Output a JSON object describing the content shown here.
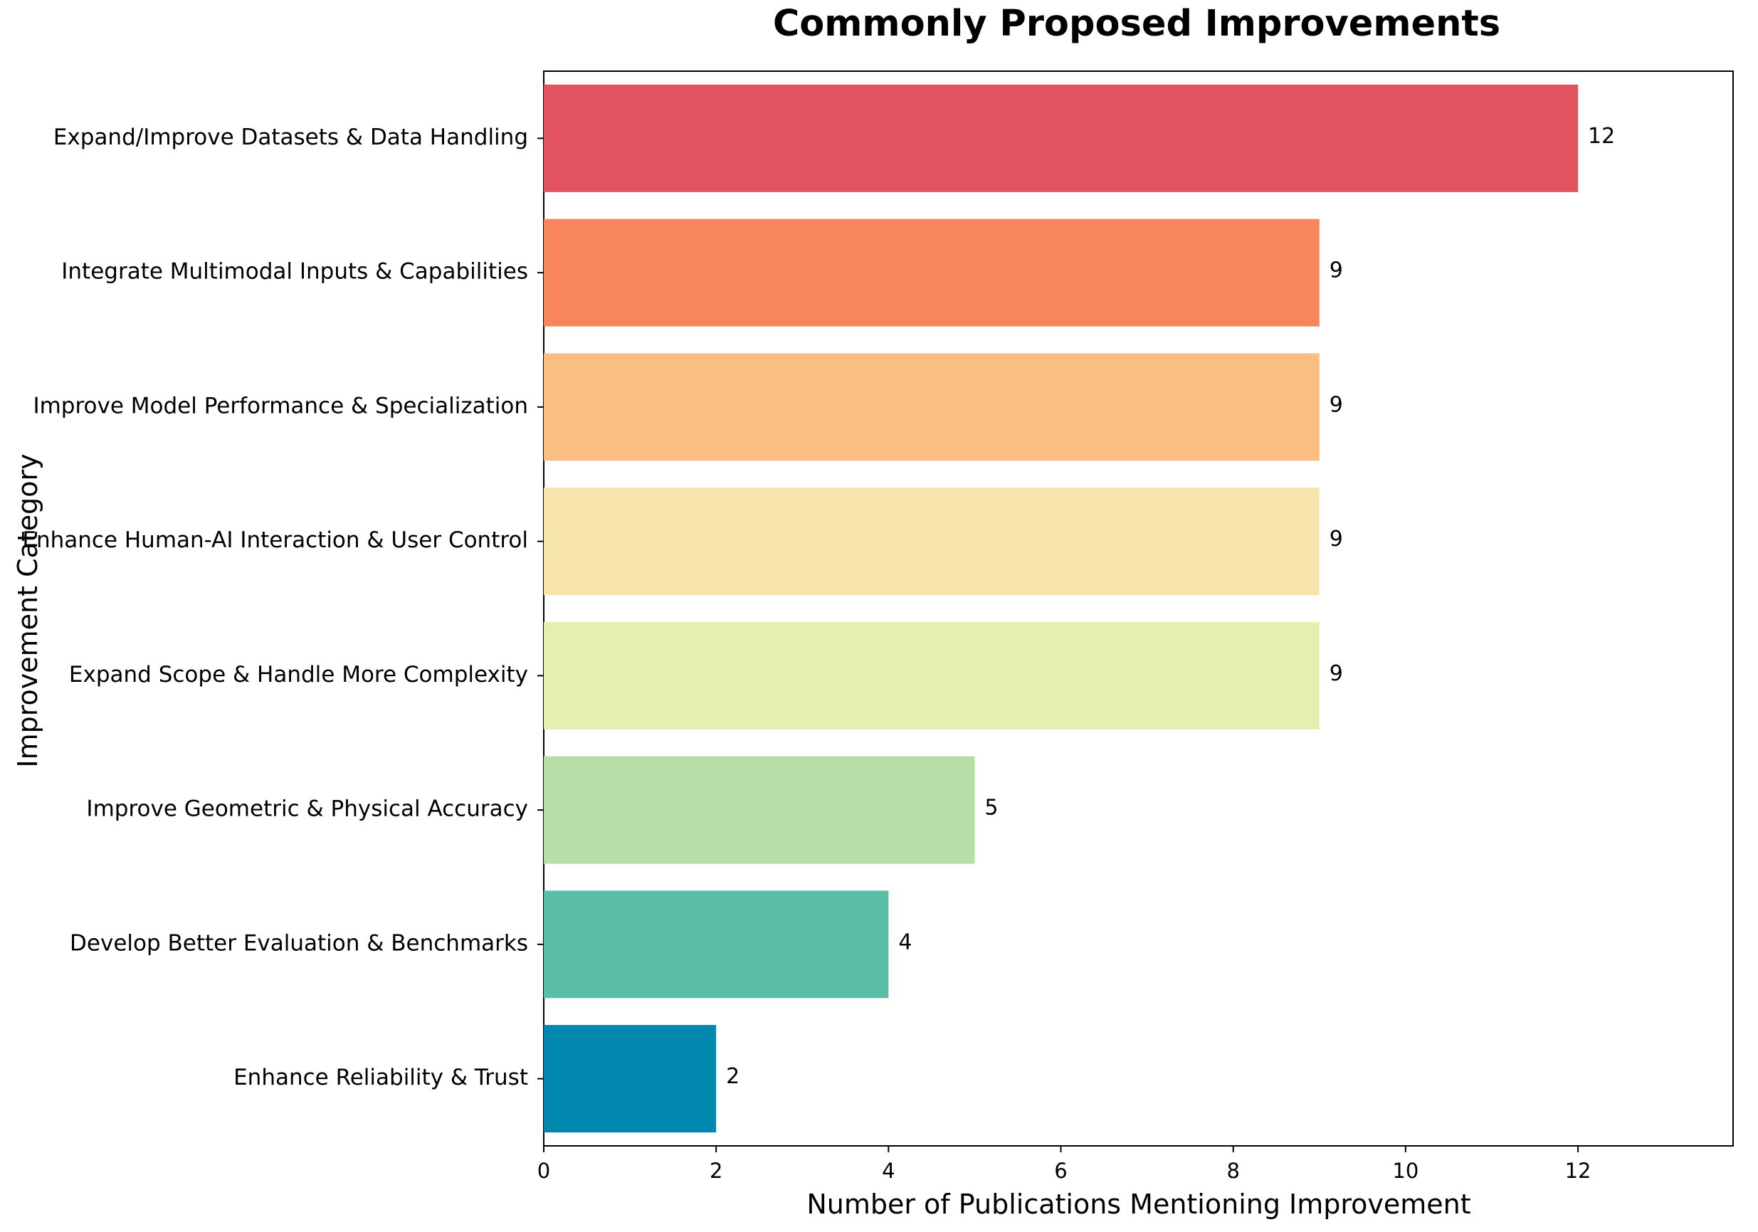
{
  "chart_data": {
    "type": "bar",
    "orientation": "horizontal",
    "title": "Commonly Proposed Improvements",
    "xlabel": "Number of Publications Mentioning Improvement",
    "ylabel": "Improvement Category",
    "xlim": [
      0,
      13.8
    ],
    "xticks": [
      0,
      2,
      4,
      6,
      8,
      10,
      12
    ],
    "grid": false,
    "categories": [
      "Expand/Improve Datasets & Data Handling",
      "Integrate Multimodal Inputs & Capabilities",
      "Improve Model Performance & Specialization",
      "Enhance Human-AI Interaction & User Control",
      "Expand Scope & Handle More Complexity",
      "Improve Geometric & Physical Accuracy",
      "Develop Better Evaluation & Benchmarks",
      "Enhance Reliability & Trust"
    ],
    "values": [
      12,
      9,
      9,
      9,
      9,
      5,
      4,
      2
    ],
    "colors": [
      "#e1545f",
      "#f9855d",
      "#f9be80",
      "#f7e4ab",
      "#e6efb0",
      "#b6dea7",
      "#5abea6",
      "#0088ae"
    ],
    "data_labels": true
  }
}
